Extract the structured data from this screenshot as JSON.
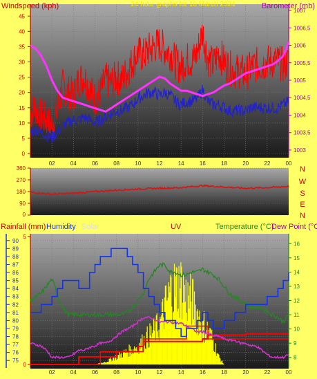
{
  "header": {
    "title": "24 hour graphs for 10 March 2024",
    "left_label": "Windspeed (kph)",
    "right_label": "Barometer (mb)"
  },
  "direction_panel": {
    "left_ticks": [
      "360",
      "270",
      "180",
      "90",
      "0"
    ],
    "right_letters": [
      "N",
      "W",
      "S",
      "E",
      "N"
    ]
  },
  "bottom_header": {
    "rainfall": "Rainfall (mm)",
    "humidity": "Humidity",
    "solar": "Solar",
    "uv": "UV",
    "temperature": "Temperature (°C)",
    "dewpoint": "Dew Point (°C)"
  },
  "colors": {
    "background": "#ffff66",
    "gust": "#ff0000",
    "wind_avg": "#2222cc",
    "barometer": "#ff33ff",
    "direction": "#dd1111",
    "humidity": "#1133ee",
    "temperature": "#228822",
    "dewpoint": "#cc33cc",
    "rain": "#ff0000",
    "solar": "#ffff00",
    "uv": "#ff0000"
  },
  "chart_data": [
    {
      "type": "line",
      "x_ticks": [
        "02",
        "04",
        "06",
        "08",
        "10",
        "12",
        "14",
        "16",
        "18",
        "20",
        "22",
        "00"
      ],
      "x_range_hours": [
        0,
        24
      ],
      "left_axis": {
        "label": "Windspeed (kph)",
        "ticks": [
          0,
          5,
          10,
          15,
          20,
          25,
          30,
          35,
          40,
          45
        ],
        "ylim": [
          0,
          48
        ]
      },
      "right_axis": {
        "label": "Barometer (mb)",
        "ticks": [
          "1003",
          "1003,5",
          "1004",
          "1004,5",
          "1005",
          "1005,5",
          "1006",
          "1006,5",
          "1007"
        ],
        "ylim": [
          1002.9,
          1007.1
        ]
      },
      "series": [
        {
          "name": "gust",
          "axis": "left",
          "x": [
            0,
            0.5,
            1,
            1.5,
            2,
            2.5,
            3,
            3.5,
            4,
            4.5,
            5,
            5.5,
            6,
            6.5,
            7,
            7.5,
            8,
            8.5,
            9,
            9.5,
            10,
            10.5,
            11,
            11.5,
            12,
            12.5,
            13,
            13.5,
            14,
            14.5,
            15,
            15.5,
            16,
            16.5,
            17,
            17.5,
            18,
            18.5,
            19,
            19.5,
            20,
            20.5,
            21,
            21.5,
            22,
            22.5,
            23,
            23.5,
            24
          ],
          "y": [
            13,
            15,
            12,
            11,
            9,
            14,
            22,
            20,
            19,
            24,
            25,
            21,
            18,
            20,
            24,
            23,
            25,
            24,
            27,
            30,
            33,
            32,
            34,
            35,
            36,
            34,
            33,
            30,
            28,
            31,
            30,
            33,
            40,
            31,
            29,
            33,
            30,
            28,
            27,
            27,
            26,
            28,
            29,
            29,
            30,
            30,
            30,
            29,
            30
          ]
        },
        {
          "name": "wind average",
          "axis": "left",
          "x": [
            0,
            0.5,
            1,
            1.5,
            2,
            2.5,
            3,
            3.5,
            4,
            4.5,
            5,
            5.5,
            6,
            6.5,
            7,
            7.5,
            8,
            8.5,
            9,
            9.5,
            10,
            10.5,
            11,
            11.5,
            12,
            12.5,
            13,
            13.5,
            14,
            14.5,
            15,
            15.5,
            16,
            16.5,
            17,
            17.5,
            18,
            18.5,
            19,
            19.5,
            20,
            20.5,
            21,
            21.5,
            22,
            22.5,
            23,
            23.5,
            24
          ],
          "y": [
            7,
            8,
            7,
            6,
            5,
            7,
            9,
            10,
            11,
            11,
            12,
            11,
            10,
            11,
            12,
            13,
            14,
            14,
            15,
            16,
            18,
            19,
            20,
            20,
            19,
            20,
            19,
            17,
            16,
            17,
            17,
            18,
            21,
            17,
            16,
            16,
            15,
            14,
            14,
            14,
            14,
            15,
            15,
            15,
            15,
            15,
            15,
            16,
            17
          ]
        },
        {
          "name": "barometer",
          "axis": "right",
          "x": [
            0,
            0.5,
            1,
            1.5,
            2,
            2.5,
            3,
            3.5,
            4,
            4.5,
            5,
            5.5,
            6,
            6.5,
            7,
            7.5,
            8,
            8.5,
            9,
            9.5,
            10,
            10.5,
            11,
            11.5,
            12,
            12.5,
            13,
            13.5,
            14,
            14.5,
            15,
            15.5,
            16,
            16.5,
            17,
            17.5,
            18,
            18.5,
            19,
            19.5,
            20,
            20.5,
            21,
            21.5,
            22,
            22.5,
            23,
            23.5,
            24
          ],
          "y": [
            1006,
            1005.9,
            1005.7,
            1005.4,
            1005,
            1004.7,
            1004.5,
            1004.45,
            1004.4,
            1004.35,
            1004.3,
            1004.25,
            1004.2,
            1004.15,
            1004.1,
            1004.2,
            1004.3,
            1004.4,
            1004.5,
            1004.6,
            1004.7,
            1004.8,
            1004.9,
            1005,
            1005.1,
            1005.05,
            1004.9,
            1004.8,
            1004.7,
            1004.7,
            1004.65,
            1004.6,
            1004.55,
            1004.6,
            1004.65,
            1004.75,
            1004.85,
            1004.9,
            1005,
            1005.1,
            1005.2,
            1005.25,
            1005.3,
            1005.35,
            1005.4,
            1005.45,
            1005.55,
            1005.7,
            1006.1
          ]
        }
      ]
    },
    {
      "type": "line",
      "x_range_hours": [
        0,
        24
      ],
      "left_axis": {
        "ticks": [
          0,
          90,
          180,
          270,
          360
        ],
        "ylim": [
          0,
          360
        ]
      },
      "right_axis": {
        "ticks": [
          "N",
          "W",
          "S",
          "E",
          "N"
        ]
      },
      "series": [
        {
          "name": "wind direction",
          "x": [
            0,
            2,
            4,
            6,
            8,
            10,
            12,
            14,
            16,
            18,
            20,
            22,
            24
          ],
          "y": [
            175,
            160,
            168,
            180,
            190,
            200,
            205,
            210,
            225,
            215,
            205,
            210,
            220
          ]
        }
      ]
    },
    {
      "type": "line",
      "x_ticks": [
        "02",
        "04",
        "06",
        "08",
        "10",
        "12",
        "14",
        "16",
        "18",
        "20",
        "22",
        "00"
      ],
      "x_range_hours": [
        0,
        24
      ],
      "left_axis": {
        "label": "Humidity",
        "ticks": [
          75,
          76,
          77,
          78,
          79,
          80,
          81,
          82,
          83,
          84,
          85,
          86,
          87,
          88,
          89,
          90
        ],
        "ylim": [
          74.5,
          90.5
        ]
      },
      "rain_axis": {
        "label": "Rainfall (mm)",
        "ticks": [
          0,
          5
        ],
        "ylim": [
          0,
          5
        ]
      },
      "right_axis": {
        "label": "Temperature (°C)",
        "ticks": [
          8,
          9,
          10,
          11,
          12,
          13,
          14,
          15,
          16
        ],
        "ylim": [
          7.5,
          16.5
        ]
      },
      "series": [
        {
          "name": "Humidity",
          "x": [
            0,
            1,
            1.5,
            2,
            2.5,
            3,
            3.5,
            4,
            4.5,
            5,
            5.5,
            6,
            6.5,
            7,
            7.5,
            8,
            8.5,
            9,
            9.5,
            10,
            10.5,
            11,
            11.5,
            12,
            12.5,
            13,
            13.5,
            14,
            14.5,
            15,
            15.5,
            16,
            16.5,
            17,
            17.5,
            18,
            18.5,
            19,
            19.5,
            20,
            20.5,
            21,
            21.5,
            22,
            22.5,
            23,
            23.5,
            24
          ],
          "y": [
            81,
            82,
            82,
            83,
            84,
            85,
            85,
            85,
            84,
            84,
            86,
            87,
            88,
            88,
            89,
            89,
            89,
            88,
            87,
            86,
            84,
            83,
            82,
            81,
            80,
            80,
            79,
            78,
            79,
            79,
            80,
            81,
            80,
            79,
            79,
            80,
            80,
            81,
            81,
            82,
            82,
            82,
            82,
            83,
            83,
            84,
            85,
            86
          ]
        },
        {
          "name": "Temperature (°C)",
          "x": [
            0,
            1,
            1.5,
            2,
            2.5,
            3,
            3.5,
            4,
            4.5,
            5,
            5.5,
            6,
            6.5,
            7,
            7.5,
            8,
            8.5,
            9,
            9.5,
            10,
            10.5,
            11,
            11.5,
            12,
            12.5,
            13,
            13.5,
            14,
            14.5,
            15,
            15.5,
            16,
            16.5,
            17,
            17.5,
            18,
            18.5,
            19,
            19.5,
            20,
            20.5,
            21,
            21.5,
            22,
            22.5,
            23,
            23.5,
            24
          ],
          "y": [
            12,
            12.5,
            13,
            13.5,
            12.5,
            11.5,
            11,
            11,
            11,
            11,
            11,
            11,
            11,
            11,
            11,
            11,
            11,
            11.2,
            11.5,
            12,
            12.5,
            13.5,
            14,
            14.5,
            14.5,
            14,
            14,
            13.8,
            13.8,
            14,
            14,
            14.2,
            14,
            13.8,
            13.5,
            13,
            12.5,
            12.2,
            12,
            11.8,
            11.5,
            11.5,
            11.5,
            11.2,
            11,
            10.8,
            10.5,
            11
          ]
        },
        {
          "name": "Dew Point (°C)",
          "x": [
            0,
            1,
            1.5,
            2,
            2.5,
            3,
            3.5,
            4,
            4.5,
            5,
            5.5,
            6,
            6.5,
            7,
            7.5,
            8,
            8.5,
            9,
            9.5,
            10,
            10.5,
            11,
            11.5,
            12,
            12.5,
            13,
            13.5,
            14,
            14.5,
            15,
            15.5,
            16,
            16.5,
            17,
            17.5,
            18,
            18.5,
            19,
            19.5,
            20,
            20.5,
            21,
            21.5,
            22,
            22.5,
            23,
            23.5,
            24
          ],
          "y": [
            9,
            8.8,
            8.5,
            8,
            8,
            8,
            8,
            8.2,
            8.5,
            8.5,
            8.7,
            8.8,
            9,
            9,
            9.2,
            9.5,
            9.8,
            10,
            10.2,
            10.5,
            10.8,
            10.8,
            10.7,
            10.5,
            10.5,
            10.5,
            10.4,
            10.4,
            10.2,
            10,
            9.8,
            9.8,
            9.7,
            9.5,
            9.5,
            9.3,
            9.2,
            9.2,
            9,
            9,
            8.8,
            8.8,
            8.5,
            8.2,
            8,
            8,
            8,
            8.2
          ]
        },
        {
          "name": "Rainfall (mm)",
          "x": [
            0,
            4,
            4.5,
            8,
            10,
            10.5,
            16,
            16.5,
            20,
            24
          ],
          "y": [
            0,
            0,
            0.3,
            0.5,
            0.7,
            0.9,
            1,
            1.15,
            1.2,
            1.2
          ]
        },
        {
          "name": "Solar",
          "x": [
            6,
            7,
            8,
            9,
            10,
            10.5,
            11,
            11.5,
            12,
            12.5,
            13,
            13.5,
            14,
            14.5,
            15,
            15.5,
            16,
            16.5,
            17,
            17.5,
            18
          ],
          "y": [
            0,
            0.1,
            0.3,
            0.5,
            0.7,
            0.9,
            1.1,
            1.3,
            1.5,
            2.2,
            2.8,
            3,
            3.1,
            2.6,
            2.5,
            2,
            1.6,
            1.3,
            0.9,
            0.3,
            0
          ]
        },
        {
          "name": "UV",
          "x": [
            0,
            6,
            6.5,
            10,
            10.5,
            14,
            14.5,
            16,
            16.5,
            24
          ],
          "y": [
            0,
            0,
            0.5,
            0.5,
            1,
            1,
            1.5,
            1.5,
            1,
            1
          ]
        }
      ]
    }
  ]
}
